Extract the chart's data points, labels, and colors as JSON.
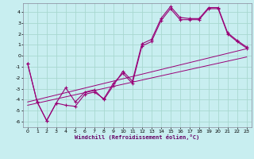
{
  "xlabel": "Windchill (Refroidissement éolien,°C)",
  "bg_color": "#c8eef0",
  "grid_color": "#a8d8d0",
  "line_color": "#990077",
  "spine_color": "#888899",
  "xlim": [
    -0.5,
    23.5
  ],
  "ylim": [
    -6.5,
    4.8
  ],
  "xticks": [
    0,
    1,
    2,
    3,
    4,
    5,
    6,
    7,
    8,
    9,
    10,
    11,
    12,
    13,
    14,
    15,
    16,
    17,
    18,
    19,
    20,
    21,
    22,
    23
  ],
  "yticks": [
    -6,
    -5,
    -4,
    -3,
    -2,
    -1,
    0,
    1,
    2,
    3,
    4
  ],
  "series1_x": [
    0,
    1,
    2,
    3,
    4,
    5,
    6,
    7,
    8,
    9,
    10,
    11,
    12,
    13,
    14,
    15,
    16,
    17,
    18,
    19,
    20,
    21,
    22,
    23
  ],
  "series1_y": [
    -0.7,
    -4.2,
    -5.9,
    -4.3,
    -4.5,
    -4.6,
    -3.5,
    -3.3,
    -3.9,
    -2.5,
    -1.6,
    -2.5,
    0.9,
    1.3,
    3.2,
    4.3,
    3.3,
    3.3,
    3.3,
    4.3,
    4.3,
    2.0,
    1.3,
    0.7
  ],
  "series2_x": [
    0,
    1,
    2,
    3,
    4,
    5,
    6,
    7,
    8,
    9,
    10,
    11,
    12,
    13,
    14,
    15,
    16,
    17,
    18,
    19,
    20,
    21,
    22,
    23
  ],
  "series2_y": [
    -0.7,
    -4.2,
    -5.9,
    -4.3,
    -2.9,
    -4.2,
    -3.3,
    -3.1,
    -4.0,
    -2.7,
    -1.4,
    -2.3,
    1.1,
    1.5,
    3.4,
    4.5,
    3.5,
    3.4,
    3.4,
    4.4,
    4.4,
    2.1,
    1.4,
    0.8
  ],
  "line3_x": [
    0,
    23
  ],
  "line3_y": [
    -4.2,
    0.65
  ],
  "line4_x": [
    0,
    23
  ],
  "line4_y": [
    -4.5,
    -0.1
  ]
}
